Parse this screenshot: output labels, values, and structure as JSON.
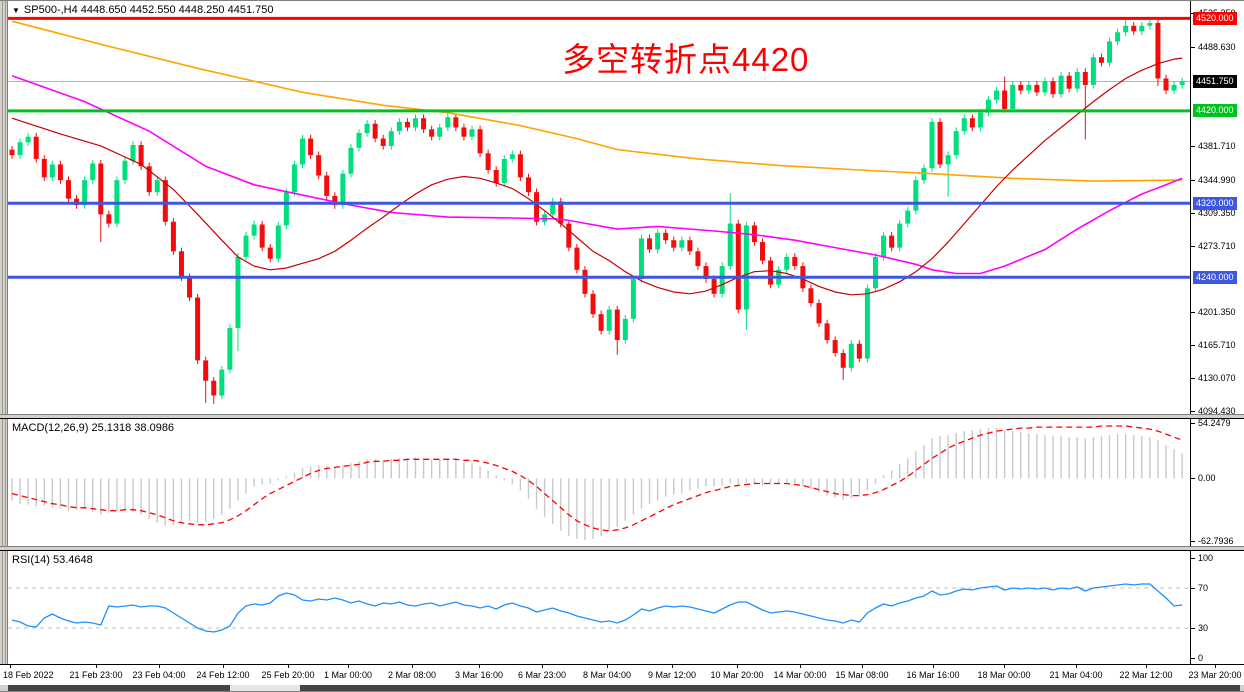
{
  "symbol_bar": {
    "text": "SP500-,H4  4448.650 4452.550 4448.250 4451.750",
    "symbol": "SP500-",
    "timeframe": "H4",
    "ohlc": {
      "open": "4448.650",
      "high": "4452.550",
      "low": "4448.250",
      "close": "4451.750"
    }
  },
  "annotation": {
    "text": "多空转折点4420",
    "color": "#FF0000"
  },
  "colors": {
    "up_candle": "#00DF7E",
    "down_candle": "#F20C0C",
    "level_red": "#FF0000",
    "level_green": "#00C21E",
    "level_blue": "#3E56E0",
    "slow_ma": "#FFA400",
    "medium_ma": "#FF00FF",
    "fast_ma": "#C80000",
    "macd_hist": "#C8C8C8",
    "macd_signal": "#FF0000",
    "rsi_line": "#1E90FF",
    "rsi_levels": "#C0C0C0",
    "current_price_line": "#B4B4B4",
    "current_price_bg": "#000000"
  },
  "price_axis": {
    "ticks": [
      [
        "4525.350",
        4525.35
      ],
      [
        "4488.630",
        4488.63
      ],
      [
        "4381.710",
        4381.71
      ],
      [
        "4344.990",
        4344.99
      ],
      [
        "4309.350",
        4309.35
      ],
      [
        "4273.710",
        4273.71
      ],
      [
        "4201.350",
        4201.35
      ],
      [
        "4165.710",
        4165.71
      ],
      [
        "4130.070",
        4130.07
      ],
      [
        "4094.430",
        4094.43
      ]
    ],
    "labels": [
      {
        "text": "4520.000",
        "price": 4520.0,
        "bg": "#FF0000"
      },
      {
        "text": "4451.750",
        "price": 4451.75,
        "bg": "#000000"
      },
      {
        "text": "4420.000",
        "price": 4420.0,
        "bg": "#00C21E"
      },
      {
        "text": "4320.000",
        "price": 4320.0,
        "bg": "#3E56E0"
      },
      {
        "text": "4240.000",
        "price": 4240.0,
        "bg": "#3E56E0"
      }
    ]
  },
  "time_axis": {
    "labels": [
      [
        10,
        "18 Feb 2022"
      ],
      [
        96,
        "21 Feb 23:00"
      ],
      [
        159,
        "23 Feb 04:00"
      ],
      [
        223,
        "24 Feb 12:00"
      ],
      [
        288,
        "25 Feb 20:00"
      ],
      [
        348,
        "1 Mar 00:00"
      ],
      [
        412,
        "2 Mar 08:00"
      ],
      [
        479,
        "3 Mar 16:00"
      ],
      [
        542,
        "6 Mar 23:00"
      ],
      [
        607,
        "8 Mar 04:00"
      ],
      [
        672,
        "9 Mar 12:00"
      ],
      [
        737,
        "10 Mar 20:00"
      ],
      [
        800,
        "14 Mar 00:00"
      ],
      [
        862,
        "15 Mar 08:00"
      ],
      [
        933,
        "16 Mar 16:00"
      ],
      [
        1004,
        "18 Mar 00:00"
      ],
      [
        1076,
        "21 Mar 04:00"
      ],
      [
        1146,
        "22 Mar 12:00"
      ],
      [
        1215,
        "23 Mar 20:00"
      ]
    ]
  },
  "indicators": {
    "macd": {
      "label": "MACD(12,26,9) 25.1318 38.0986",
      "ticks": [
        [
          "54.2479",
          54.2479
        ],
        [
          "0.00",
          0
        ],
        [
          "-62.7936",
          -62.7936
        ]
      ]
    },
    "rsi": {
      "label": "RSI(14) 53.4648",
      "ticks": [
        [
          "100",
          100
        ],
        [
          "70",
          70
        ],
        [
          "30",
          30
        ],
        [
          "0",
          0
        ]
      ],
      "levels": [
        70,
        30
      ]
    }
  },
  "scrollbar": {
    "dark_segments": [
      [
        8,
        230
      ],
      [
        300,
        1240
      ]
    ],
    "light_segments": [
      [
        230,
        300
      ]
    ]
  },
  "chart_data": {
    "type": "candlestick",
    "title": "SP500-,H4",
    "price_range": [
      4092,
      4528
    ],
    "current_price": 4451.75,
    "horizontal_levels": [
      {
        "price": 4520,
        "color": "#FF0000",
        "width": 3
      },
      {
        "price": 4420,
        "color": "#00C21E",
        "width": 3
      },
      {
        "price": 4320,
        "color": "#3E56E0",
        "width": 3
      },
      {
        "price": 4240,
        "color": "#3E56E0",
        "width": 3
      }
    ],
    "candles": {
      "first_open": 4378,
      "wick_pad": 4,
      "closes": [
        4372,
        4386,
        4392,
        4368,
        4348,
        4362,
        4345,
        4325,
        4318,
        4345,
        4363,
        4308,
        4298,
        4345,
        4366,
        4383,
        4360,
        4332,
        4345,
        4300,
        4268,
        4240,
        4218,
        4150,
        4128,
        4112,
        4140,
        4185,
        4262,
        4285,
        4297,
        4272,
        4260,
        4296,
        4332,
        4362,
        4390,
        4372,
        4350,
        4328,
        4318,
        4352,
        4380,
        4396,
        4406,
        4390,
        4382,
        4398,
        4408,
        4402,
        4412,
        4400,
        4392,
        4402,
        4413,
        4402,
        4392,
        4400,
        4374,
        4356,
        4342,
        4368,
        4373,
        4348,
        4332,
        4300,
        4308,
        4322,
        4298,
        4272,
        4248,
        4222,
        4200,
        4182,
        4205,
        4172,
        4195,
        4238,
        4282,
        4270,
        4288,
        4280,
        4272,
        4280,
        4268,
        4252,
        4238,
        4222,
        4252,
        4298,
        4205,
        4296,
        4278,
        4258,
        4232,
        4248,
        4262,
        4252,
        4228,
        4212,
        4190,
        4172,
        4158,
        4142,
        4168,
        4152,
        4228,
        4262,
        4285,
        4272,
        4298,
        4312,
        4345,
        4358,
        4408,
        4362,
        4372,
        4398,
        4412,
        4402,
        4418,
        4432,
        4442,
        4422,
        4448,
        4442,
        4448,
        4440,
        4452,
        4438,
        4458,
        4444,
        4462,
        4448,
        4478,
        4472,
        4495,
        4505,
        4512,
        4506,
        4512,
        4515,
        4455,
        4442,
        4448,
        4452
      ],
      "wick_overrides": {
        "11": [
          null,
          4278
        ],
        "24": [
          null,
          4104
        ],
        "25": [
          null,
          4103
        ],
        "28": [
          null,
          4160
        ],
        "54": [
          4421,
          null
        ],
        "75": [
          null,
          4156
        ],
        "89": [
          4331,
          null
        ],
        "91": [
          null,
          4183
        ],
        "103": [
          null,
          4129
        ],
        "116": [
          null,
          4327
        ],
        "123": [
          4457,
          null
        ],
        "133": [
          null,
          4389
        ],
        "138": [
          4519,
          null
        ],
        "142": [
          null,
          4447
        ]
      }
    },
    "moving_averages": [
      {
        "name": "slow-ma",
        "color": "#FFA400",
        "w": 1.6,
        "points": [
          [
            0,
            4517
          ],
          [
            11,
            4492
          ],
          [
            23,
            4466
          ],
          [
            36,
            4440
          ],
          [
            46,
            4426
          ],
          [
            54,
            4418
          ],
          [
            63,
            4404
          ],
          [
            70,
            4390
          ],
          [
            75,
            4378
          ],
          [
            85,
            4368
          ],
          [
            95,
            4361
          ],
          [
            105,
            4356
          ],
          [
            114,
            4352
          ],
          [
            124,
            4347
          ],
          [
            134,
            4344
          ],
          [
            145,
            4345
          ]
        ]
      },
      {
        "name": "medium-ma",
        "color": "#FF00FF",
        "w": 1.6,
        "points": [
          [
            0,
            4458
          ],
          [
            9,
            4430
          ],
          [
            17,
            4398
          ],
          [
            24,
            4360
          ],
          [
            30,
            4340
          ],
          [
            37,
            4327
          ],
          [
            42,
            4318
          ],
          [
            47,
            4310
          ],
          [
            54,
            4305
          ],
          [
            62,
            4304
          ],
          [
            68,
            4303
          ],
          [
            75,
            4292
          ],
          [
            80,
            4295
          ],
          [
            87,
            4290
          ],
          [
            92,
            4286
          ],
          [
            97,
            4280
          ],
          [
            102,
            4272
          ],
          [
            107,
            4264
          ],
          [
            112,
            4254
          ],
          [
            114,
            4248
          ],
          [
            117,
            4244
          ],
          [
            120,
            4244
          ],
          [
            123,
            4252
          ],
          [
            128,
            4270
          ],
          [
            132,
            4292
          ],
          [
            136,
            4312
          ],
          [
            140,
            4330
          ],
          [
            143,
            4340
          ],
          [
            145,
            4347
          ]
        ]
      },
      {
        "name": "fast-ma",
        "color": "#C80000",
        "w": 1.2,
        "points": [
          [
            0,
            4412
          ],
          [
            6,
            4395
          ],
          [
            11,
            4382
          ],
          [
            16,
            4362
          ],
          [
            20,
            4335
          ],
          [
            23,
            4308
          ],
          [
            26,
            4280
          ],
          [
            28,
            4262
          ],
          [
            30,
            4252
          ],
          [
            32,
            4248
          ],
          [
            34,
            4250
          ],
          [
            36,
            4255
          ],
          [
            38,
            4260
          ],
          [
            40,
            4268
          ],
          [
            42,
            4280
          ],
          [
            44,
            4293
          ],
          [
            46,
            4305
          ],
          [
            48,
            4318
          ],
          [
            50,
            4330
          ],
          [
            52,
            4340
          ],
          [
            54,
            4346
          ],
          [
            56,
            4349
          ],
          [
            58,
            4347
          ],
          [
            60,
            4342
          ],
          [
            62,
            4336
          ],
          [
            64,
            4325
          ],
          [
            66,
            4312
          ],
          [
            68,
            4298
          ],
          [
            70,
            4283
          ],
          [
            72,
            4268
          ],
          [
            74,
            4258
          ],
          [
            76,
            4246
          ],
          [
            78,
            4236
          ],
          [
            80,
            4229
          ],
          [
            82,
            4224
          ],
          [
            84,
            4222
          ],
          [
            86,
            4225
          ],
          [
            88,
            4232
          ],
          [
            90,
            4240
          ],
          [
            92,
            4246
          ],
          [
            94,
            4247
          ],
          [
            96,
            4244
          ],
          [
            98,
            4238
          ],
          [
            100,
            4230
          ],
          [
            102,
            4224
          ],
          [
            104,
            4221
          ],
          [
            106,
            4222
          ],
          [
            108,
            4227
          ],
          [
            110,
            4235
          ],
          [
            112,
            4246
          ],
          [
            114,
            4260
          ],
          [
            116,
            4278
          ],
          [
            118,
            4298
          ],
          [
            120,
            4318
          ],
          [
            122,
            4338
          ],
          [
            124,
            4356
          ],
          [
            126,
            4372
          ],
          [
            128,
            4388
          ],
          [
            130,
            4402
          ],
          [
            132,
            4416
          ],
          [
            134,
            4430
          ],
          [
            136,
            4443
          ],
          [
            138,
            4455
          ],
          [
            140,
            4464
          ],
          [
            142,
            4471
          ],
          [
            144,
            4476
          ],
          [
            145,
            4477
          ]
        ]
      }
    ],
    "macd": {
      "range": [
        -67,
        58
      ],
      "current": {
        "main": 25.1318,
        "signal": 38.0986
      },
      "hist": [
        -22,
        -25,
        -26,
        -28,
        -27,
        -29,
        -30,
        -32,
        -31,
        -30,
        -33,
        -36,
        -34,
        -32,
        -31,
        -33,
        -36,
        -40,
        -44,
        -47,
        -46,
        -44,
        -42,
        -45,
        -43,
        -40,
        -36,
        -30,
        -22,
        -15,
        -8,
        -6,
        -5,
        -2,
        2,
        6,
        10,
        12,
        13,
        12,
        11,
        13,
        15,
        17,
        19,
        19,
        18,
        19,
        20,
        20,
        21,
        20,
        19,
        19,
        20,
        18,
        16,
        15,
        12,
        8,
        3,
        -2,
        -6,
        -12,
        -20,
        -30,
        -38,
        -45,
        -52,
        -57,
        -60,
        -61,
        -60,
        -57,
        -52,
        -48,
        -42,
        -36,
        -30,
        -25,
        -22,
        -18,
        -16,
        -15,
        -12,
        -10,
        -8,
        -8,
        -7,
        -5,
        -6,
        -4,
        -5,
        -7,
        -6,
        -5,
        -4,
        -5,
        -8,
        -11,
        -14,
        -17,
        -19,
        -21,
        -20,
        -18,
        -12,
        -5,
        3,
        8,
        14,
        20,
        27,
        33,
        40,
        42,
        43,
        45,
        47,
        48,
        49,
        50,
        50,
        48,
        47,
        46,
        45,
        44,
        43,
        42,
        42,
        41,
        41,
        40,
        41,
        42,
        43,
        44,
        44,
        43,
        42,
        41,
        38,
        33,
        29,
        25
      ],
      "signal": [
        -15,
        -17,
        -19,
        -21,
        -23,
        -25,
        -26,
        -28,
        -29,
        -29,
        -30,
        -31,
        -32,
        -32,
        -31,
        -31,
        -32,
        -34,
        -36,
        -39,
        -42,
        -44,
        -45,
        -46,
        -46,
        -45,
        -44,
        -41,
        -37,
        -32,
        -26,
        -20,
        -15,
        -11,
        -7,
        -3,
        1,
        5,
        8,
        10,
        11,
        12,
        13,
        14,
        16,
        17,
        17,
        18,
        18,
        19,
        19,
        19,
        19,
        19,
        19,
        19,
        18,
        18,
        17,
        15,
        13,
        10,
        7,
        3,
        -2,
        -8,
        -15,
        -22,
        -29,
        -36,
        -42,
        -46,
        -49,
        -51,
        -52,
        -51,
        -49,
        -46,
        -42,
        -38,
        -34,
        -30,
        -26,
        -23,
        -20,
        -17,
        -14,
        -12,
        -10,
        -8,
        -7,
        -6,
        -5,
        -5,
        -5,
        -5,
        -5,
        -6,
        -7,
        -9,
        -11,
        -13,
        -15,
        -16,
        -17,
        -17,
        -16,
        -14,
        -11,
        -7,
        -3,
        2,
        8,
        14,
        20,
        25,
        30,
        34,
        37,
        40,
        43,
        45,
        47,
        48,
        49,
        50,
        50,
        51,
        51,
        51,
        51,
        51,
        51,
        51,
        51,
        52,
        52,
        52,
        52,
        51,
        50,
        49,
        47,
        44,
        41,
        38
      ]
    },
    "rsi": {
      "range": [
        0,
        100
      ],
      "current": 53.4648,
      "values": [
        38,
        36,
        32,
        31,
        40,
        44,
        40,
        37,
        35,
        36,
        35,
        33,
        52,
        51,
        52,
        53,
        51,
        52,
        52,
        50,
        45,
        40,
        35,
        30,
        27,
        26,
        28,
        32,
        45,
        52,
        54,
        53,
        55,
        62,
        65,
        63,
        58,
        57,
        59,
        58,
        60,
        58,
        55,
        57,
        54,
        52,
        55,
        54,
        56,
        53,
        52,
        54,
        55,
        52,
        54,
        56,
        53,
        52,
        50,
        52,
        49,
        53,
        55,
        52,
        50,
        46,
        48,
        50,
        47,
        45,
        42,
        40,
        38,
        36,
        37,
        35,
        38,
        43,
        49,
        47,
        50,
        52,
        51,
        52,
        51,
        49,
        47,
        45,
        49,
        53,
        56,
        56,
        52,
        48,
        45,
        46,
        47,
        46,
        44,
        42,
        40,
        38,
        37,
        35,
        38,
        36,
        45,
        50,
        54,
        52,
        55,
        57,
        60,
        62,
        67,
        63,
        64,
        67,
        69,
        68,
        70,
        71,
        72,
        68,
        70,
        69,
        70,
        69,
        70,
        68,
        70,
        69,
        71,
        67,
        70,
        71,
        72,
        73,
        74,
        73,
        74,
        74,
        67,
        60,
        52,
        53
      ]
    }
  }
}
